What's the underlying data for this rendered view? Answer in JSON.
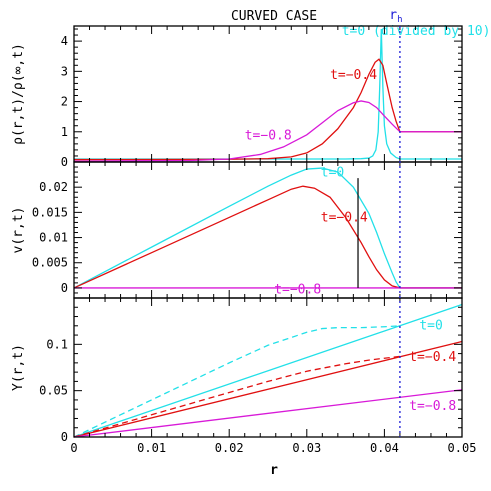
{
  "chart_data": {
    "type": "line",
    "title": "CURVED CASE",
    "xlabel": "r",
    "xlim": [
      0,
      0.05
    ],
    "x_ticks": [
      "0",
      "0.01",
      "0.02",
      "0.03",
      "0.04",
      "0.05"
    ],
    "reference_line": {
      "label": "rh",
      "label_main": "r",
      "label_sub": "h",
      "x": 0.042,
      "color": "#1a1ad6",
      "style": "dotted"
    },
    "panels": [
      {
        "ylabel": "ρ(r,t)/ρ(∞,t)",
        "ylim": [
          0,
          4.5
        ],
        "y_ticks": [
          0,
          1,
          2,
          3,
          4
        ],
        "y_tick_labels": [
          "0",
          "1",
          "2",
          "3",
          "4"
        ],
        "series": [
          {
            "name": "t=0 (divided by 10)",
            "color": "#22e0e8",
            "label_pos": [
              0.0345,
              4.2
            ],
            "points": [
              [
                0,
                0.1
              ],
              [
                0.03,
                0.1
              ],
              [
                0.035,
                0.1
              ],
              [
                0.037,
                0.11
              ],
              [
                0.038,
                0.13
              ],
              [
                0.0385,
                0.2
              ],
              [
                0.0389,
                0.4
              ],
              [
                0.0392,
                1.0
              ],
              [
                0.0394,
                2.5
              ],
              [
                0.0396,
                4.4
              ],
              [
                0.0398,
                2.5
              ],
              [
                0.04,
                1.2
              ],
              [
                0.0403,
                0.6
              ],
              [
                0.0408,
                0.3
              ],
              [
                0.0415,
                0.15
              ],
              [
                0.042,
                0.1
              ],
              [
                0.05,
                0.1
              ]
            ]
          },
          {
            "name": "t=−0.4",
            "color": "#e01010",
            "label_pos": [
              0.033,
              2.75
            ],
            "points": [
              [
                0,
                0.08
              ],
              [
                0.02,
                0.09
              ],
              [
                0.025,
                0.11
              ],
              [
                0.028,
                0.17
              ],
              [
                0.03,
                0.3
              ],
              [
                0.032,
                0.6
              ],
              [
                0.034,
                1.1
              ],
              [
                0.036,
                1.8
              ],
              [
                0.037,
                2.3
              ],
              [
                0.038,
                2.9
              ],
              [
                0.0388,
                3.3
              ],
              [
                0.0393,
                3.4
              ],
              [
                0.0398,
                3.2
              ],
              [
                0.0403,
                2.6
              ],
              [
                0.041,
                1.8
              ],
              [
                0.0415,
                1.35
              ],
              [
                0.042,
                1.0
              ],
              [
                0.05,
                1.0
              ]
            ]
          },
          {
            "name": "t=−0.8",
            "color": "#d81ad8",
            "label_pos": [
              0.022,
              0.75
            ],
            "points": [
              [
                0,
                0.03
              ],
              [
                0.015,
                0.05
              ],
              [
                0.02,
                0.1
              ],
              [
                0.024,
                0.25
              ],
              [
                0.027,
                0.5
              ],
              [
                0.03,
                0.9
              ],
              [
                0.032,
                1.3
              ],
              [
                0.034,
                1.7
              ],
              [
                0.036,
                1.96
              ],
              [
                0.037,
                2.02
              ],
              [
                0.038,
                1.97
              ],
              [
                0.039,
                1.8
              ],
              [
                0.04,
                1.52
              ],
              [
                0.041,
                1.25
              ],
              [
                0.042,
                1.0
              ],
              [
                0.05,
                1.0
              ]
            ]
          }
        ]
      },
      {
        "ylabel": "v(r,t)",
        "ylim": [
          -0.002,
          0.025
        ],
        "y_ticks": [
          0,
          0.005,
          0.01,
          0.015,
          0.02
        ],
        "y_tick_labels": [
          "0",
          "0.005",
          "0.01",
          "0.015",
          "0.02"
        ],
        "vertical_marker": {
          "x": 0.0366,
          "y_top": 0.0218,
          "color": "#000000"
        },
        "series": [
          {
            "name": "t=0",
            "color": "#22e0e8",
            "label_pos": [
              0.0318,
              0.0221
            ],
            "points": [
              [
                0,
                0
              ],
              [
                0.01,
                0.0081
              ],
              [
                0.02,
                0.0162
              ],
              [
                0.025,
                0.0202
              ],
              [
                0.028,
                0.0224
              ],
              [
                0.03,
                0.0236
              ],
              [
                0.032,
                0.0238
              ],
              [
                0.034,
                0.023
              ],
              [
                0.036,
                0.02
              ],
              [
                0.038,
                0.0148
              ],
              [
                0.039,
                0.011
              ],
              [
                0.04,
                0.0068
              ],
              [
                0.041,
                0.003
              ],
              [
                0.0415,
                0.0012
              ],
              [
                0.042,
                0
              ],
              [
                0.05,
                0
              ]
            ]
          },
          {
            "name": "t=−0.4",
            "color": "#e01010",
            "label_pos": [
              0.0318,
              0.0132
            ],
            "points": [
              [
                0,
                0
              ],
              [
                0.01,
                0.007
              ],
              [
                0.02,
                0.014
              ],
              [
                0.025,
                0.0175
              ],
              [
                0.028,
                0.0196
              ],
              [
                0.0295,
                0.0202
              ],
              [
                0.031,
                0.0198
              ],
              [
                0.033,
                0.018
              ],
              [
                0.035,
                0.014
              ],
              [
                0.037,
                0.009
              ],
              [
                0.038,
                0.0062
              ],
              [
                0.039,
                0.0036
              ],
              [
                0.04,
                0.0016
              ],
              [
                0.041,
                0.0004
              ],
              [
                0.042,
                0
              ],
              [
                0.05,
                0
              ]
            ]
          },
          {
            "name": "t=−0.8",
            "color": "#d81ad8",
            "label_pos": [
              0.0258,
              -0.0011
            ],
            "points": [
              [
                0,
                0
              ],
              [
                0.05,
                0
              ]
            ]
          }
        ]
      },
      {
        "ylabel": "Y(r,t)",
        "ylim": [
          0,
          0.15
        ],
        "y_ticks": [
          0,
          0.05,
          0.1
        ],
        "y_tick_labels": [
          "0",
          "0.05",
          "0.1"
        ],
        "series": [
          {
            "name": "t=0",
            "color": "#22e0e8",
            "label_pos": [
              0.0445,
              0.116
            ],
            "points": [
              [
                0,
                0
              ],
              [
                0.05,
                0.143
              ]
            ]
          },
          {
            "name": "t=0",
            "color": "#22e0e8",
            "style": "dashed",
            "label_pos": null,
            "points": [
              [
                0,
                0
              ],
              [
                0.005,
                0.02
              ],
              [
                0.01,
                0.04
              ],
              [
                0.015,
                0.06
              ],
              [
                0.02,
                0.08
              ],
              [
                0.025,
                0.099
              ],
              [
                0.03,
                0.113
              ],
              [
                0.032,
                0.117
              ],
              [
                0.034,
                0.118
              ],
              [
                0.037,
                0.118
              ],
              [
                0.04,
                0.119
              ],
              [
                0.042,
                0.12
              ]
            ]
          },
          {
            "name": "t=−0.4",
            "color": "#e01010",
            "label_pos": [
              0.0432,
              0.082
            ],
            "points": [
              [
                0,
                0
              ],
              [
                0.05,
                0.103
              ]
            ]
          },
          {
            "name": "t=−0.4",
            "color": "#e01010",
            "style": "dashed",
            "label_pos": null,
            "points": [
              [
                0,
                0
              ],
              [
                0.01,
                0.024
              ],
              [
                0.02,
                0.048
              ],
              [
                0.025,
                0.06
              ],
              [
                0.03,
                0.071
              ],
              [
                0.035,
                0.079
              ],
              [
                0.038,
                0.083
              ],
              [
                0.04,
                0.085
              ],
              [
                0.042,
                0.087
              ]
            ]
          },
          {
            "name": "t=−0.8",
            "color": "#d81ad8",
            "label_pos": [
              0.0432,
              0.029
            ],
            "points": [
              [
                0,
                0
              ],
              [
                0.05,
                0.051
              ]
            ]
          }
        ]
      }
    ]
  }
}
